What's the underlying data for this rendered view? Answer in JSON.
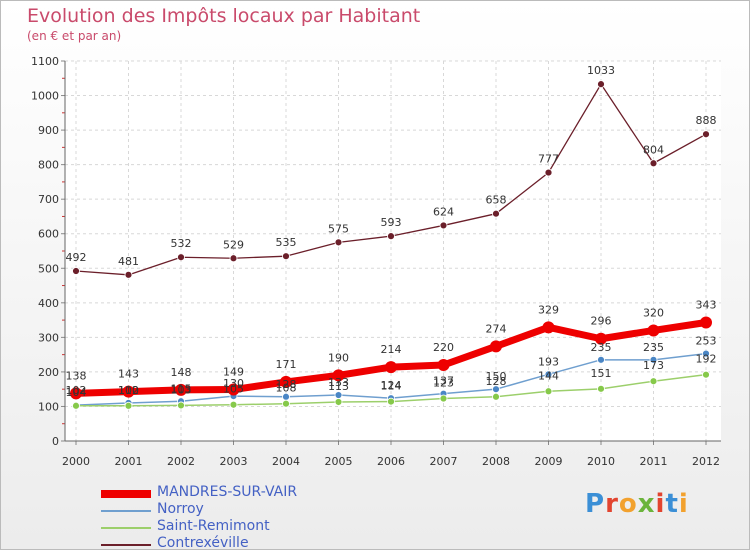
{
  "header": {
    "title": "Evolution des Impôts locaux par Habitant",
    "subtitle": "(en € et par an)"
  },
  "brand": {
    "text": "Proxiti"
  },
  "chart_data": {
    "type": "line",
    "title": "Evolution des Impôts locaux par Habitant",
    "subtitle": "(en € et par an)",
    "xlabel": "",
    "ylabel": "",
    "x": [
      "2000",
      "2001",
      "2002",
      "2003",
      "2004",
      "2005",
      "2006",
      "2007",
      "2008",
      "2009",
      "2010",
      "2011",
      "2012"
    ],
    "ylim": [
      0,
      1100
    ],
    "yticks": [
      "0",
      "100",
      "200",
      "300",
      "400",
      "500",
      "600",
      "700",
      "800",
      "900",
      "1000",
      "1100"
    ],
    "grid": true,
    "legend": "bottom-left",
    "series": [
      {
        "name": "MANDRES-SUR-VAIR",
        "color": "#ee0000",
        "values": [
          138,
          143,
          148,
          149,
          171,
          190,
          214,
          220,
          274,
          329,
          296,
          320,
          343
        ],
        "labels": [
          "138",
          "143",
          "148",
          "149",
          "171",
          "190",
          "214",
          "220",
          "274",
          "329",
          "296",
          "320",
          "343"
        ]
      },
      {
        "name": "Norroy",
        "color": "#6f9fcf",
        "values": [
          104,
          110,
          115,
          130,
          128,
          133,
          124,
          137,
          150,
          193,
          235,
          235,
          253
        ],
        "labels": [
          "104",
          "110",
          "115",
          "130",
          "128",
          "133",
          "124",
          "137",
          "150",
          "193",
          "235",
          "235",
          "253"
        ]
      },
      {
        "name": "Saint-Remimont",
        "color": "#9ccf6b",
        "values": [
          102,
          102,
          103,
          105,
          108,
          113,
          114,
          123,
          128,
          144,
          151,
          173,
          192
        ],
        "labels": [
          "102",
          "102",
          "103",
          "105",
          "108",
          "113",
          "114",
          "123",
          "128",
          "144",
          "151",
          "173",
          "192"
        ]
      },
      {
        "name": "Contrexéville",
        "color": "#6b1f2a",
        "values": [
          492,
          481,
          532,
          529,
          535,
          575,
          593,
          624,
          658,
          777,
          1033,
          804,
          888
        ],
        "labels": [
          "492",
          "481",
          "532",
          "529",
          "535",
          "575",
          "593",
          "624",
          "658",
          "777",
          "1033",
          "804",
          "888"
        ]
      }
    ]
  }
}
